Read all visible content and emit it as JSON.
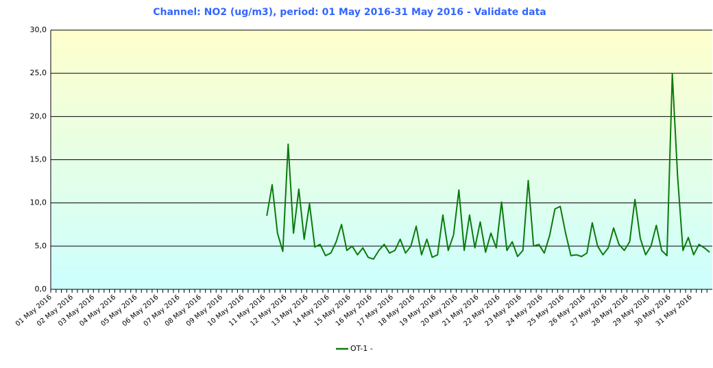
{
  "chart_data": {
    "type": "line",
    "title": "Channel: NO2 (ug/m3), period: 01 May 2016-31 May 2016 - Validate data",
    "categories": [
      "01 May 2016",
      null,
      null,
      null,
      "02 May 2016",
      null,
      null,
      null,
      "03 May 2016",
      null,
      null,
      null,
      "04 May 2016",
      null,
      null,
      null,
      "05 May 2016",
      null,
      null,
      null,
      "06 May 2016",
      null,
      null,
      null,
      "07 May 2016",
      null,
      null,
      null,
      "08 May 2016",
      null,
      null,
      null,
      "09 May 2016",
      null,
      null,
      null,
      "10 May 2016",
      null,
      null,
      null,
      "11 May 2016",
      null,
      null,
      null,
      "12 May 2016",
      null,
      null,
      null,
      "13 May 2016",
      null,
      null,
      null,
      "14 May 2016",
      null,
      null,
      null,
      "15 May 2016",
      null,
      null,
      null,
      "16 May 2016",
      null,
      null,
      null,
      "17 May 2016",
      null,
      null,
      null,
      "18 May 2016",
      null,
      null,
      null,
      "19 May 2016",
      null,
      null,
      null,
      "20 May 2016",
      null,
      null,
      null,
      "21 May 2016",
      null,
      null,
      null,
      "22 May 2016",
      null,
      null,
      null,
      "23 May 2016",
      null,
      null,
      null,
      "24 May 2016",
      null,
      null,
      null,
      "25 May 2016",
      null,
      null,
      null,
      "26 May 2016",
      null,
      null,
      null,
      "27 May 2016",
      null,
      null,
      null,
      "28 May 2016",
      null,
      null,
      null,
      "29 May 2016",
      null,
      null,
      null,
      "30 May 2016",
      null,
      null,
      null,
      "31 May 2016",
      null,
      null,
      null
    ],
    "series": [
      {
        "name": "OT-1 -",
        "color": "#0a7a0a",
        "values": [
          null,
          null,
          null,
          null,
          null,
          null,
          null,
          null,
          null,
          null,
          null,
          null,
          null,
          null,
          null,
          null,
          null,
          null,
          null,
          null,
          null,
          null,
          null,
          null,
          null,
          null,
          null,
          null,
          null,
          null,
          null,
          null,
          null,
          null,
          null,
          null,
          null,
          null,
          null,
          null,
          8.5,
          12.1,
          6.5,
          4.4,
          16.8,
          6.5,
          11.6,
          5.8,
          9.9,
          4.9,
          5.2,
          3.9,
          4.2,
          5.5,
          7.5,
          4.5,
          5.0,
          4.0,
          4.8,
          3.7,
          3.5,
          4.5,
          5.2,
          4.2,
          4.5,
          5.8,
          4.2,
          5.0,
          7.3,
          4.0,
          5.8,
          3.7,
          4.0,
          8.6,
          4.5,
          6.3,
          11.5,
          4.5,
          8.6,
          4.8,
          7.8,
          4.3,
          6.5,
          4.8,
          10.1,
          4.5,
          5.5,
          3.8,
          4.5,
          12.6,
          5.0,
          5.2,
          4.2,
          6.2,
          9.3,
          9.6,
          6.5,
          3.9,
          4.0,
          3.8,
          4.2,
          7.7,
          5.0,
          4.0,
          4.8,
          7.1,
          5.2,
          4.5,
          5.5,
          10.4,
          5.9,
          4.0,
          5.0,
          7.4,
          4.5,
          3.9,
          24.9,
          13.0,
          4.5,
          6.0,
          4.0,
          5.2,
          4.8,
          4.3
        ]
      }
    ],
    "ylim": [
      0,
      30
    ],
    "yticks": [
      {
        "value": 0,
        "label": "0,0"
      },
      {
        "value": 5,
        "label": "5,0"
      },
      {
        "value": 10,
        "label": "10,0"
      },
      {
        "value": 15,
        "label": "15,0"
      },
      {
        "value": 20,
        "label": "20,0"
      },
      {
        "value": 25,
        "label": "25,0"
      },
      {
        "value": 30,
        "label": "30,0"
      }
    ],
    "grid": true
  }
}
